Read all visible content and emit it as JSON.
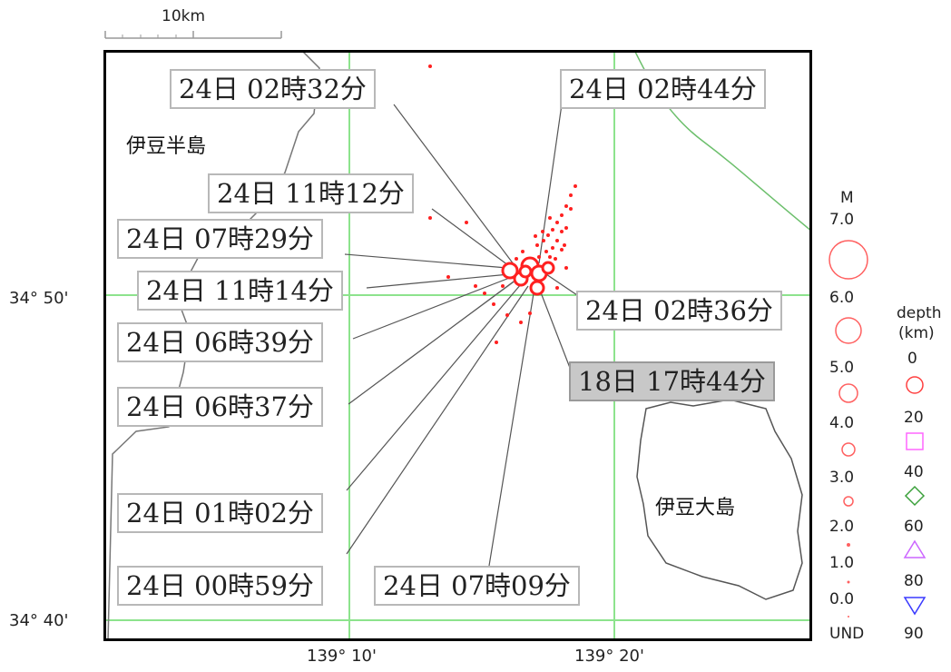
{
  "scale_bar": {
    "label": "10km"
  },
  "coordinates": {
    "lat_50": "34° 50'",
    "lat_40": "34° 40'",
    "lon_10": "139° 10'",
    "lon_20": "139° 20'"
  },
  "places": {
    "izu_peninsula": "伊豆半島",
    "izu_oshima": "伊豆大島"
  },
  "callouts": [
    {
      "text": "24日 02時32分",
      "highlight": false
    },
    {
      "text": "24日 02時44分",
      "highlight": false
    },
    {
      "text": "24日 11時12分",
      "highlight": false
    },
    {
      "text": "24日 07時29分",
      "highlight": false
    },
    {
      "text": "24日 11時14分",
      "highlight": false
    },
    {
      "text": "24日 02時36分",
      "highlight": false
    },
    {
      "text": "24日 06時39分",
      "highlight": false
    },
    {
      "text": "18日 17時44分",
      "highlight": true
    },
    {
      "text": "24日 06時37分",
      "highlight": false
    },
    {
      "text": "24日 01時02分",
      "highlight": false
    },
    {
      "text": "24日 00時59分",
      "highlight": false
    },
    {
      "text": "24日 07時09分",
      "highlight": false
    }
  ],
  "legend": {
    "magnitude": {
      "title": "M",
      "labels": [
        "7.0",
        "6.0",
        "5.0",
        "4.0",
        "3.0",
        "2.0",
        "1.0",
        "0.0",
        "UND"
      ]
    },
    "depth": {
      "title_line1": "depth",
      "title_line2": "(km)",
      "labels": [
        "0",
        "20",
        "40",
        "60",
        "80",
        "90"
      ],
      "symbols": [
        "circle-icon",
        "square-icon",
        "diamond-icon",
        "triangle-up-icon",
        "triangle-down-icon"
      ]
    }
  },
  "colors": {
    "event": "#ff2020",
    "grid": "#7fe07f",
    "coast": "#666666",
    "depth_0": "#ff4040",
    "depth_20": "#ff66ff",
    "depth_40": "#3aa03a",
    "depth_60": "#cc66ff",
    "depth_80": "#3a3aff"
  }
}
